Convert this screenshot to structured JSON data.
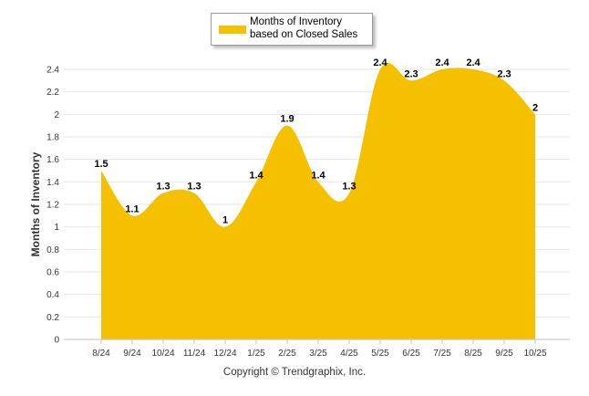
{
  "chart_data": {
    "type": "area",
    "title": "",
    "legend": {
      "label": "Months of Inventory based on Closed Sales",
      "position": "top-center"
    },
    "xlabel": "",
    "ylabel": "Months of Inventory",
    "categories": [
      "8/24",
      "9/24",
      "10/24",
      "11/24",
      "12/24",
      "1/25",
      "2/25",
      "3/25",
      "4/25",
      "5/25",
      "6/25",
      "7/25",
      "8/25",
      "9/25",
      "10/25"
    ],
    "values": [
      1.5,
      1.1,
      1.3,
      1.3,
      1,
      1.4,
      1.9,
      1.4,
      1.3,
      2.4,
      2.3,
      2.4,
      2.4,
      2.3,
      2
    ],
    "data_labels": [
      "1.5",
      "1.1",
      "1.3",
      "1.3",
      "1",
      "1.4",
      "1.9",
      "1.4",
      "1.3",
      "2.4",
      "2.3",
      "2.4",
      "2.4",
      "2.3",
      "2"
    ],
    "ylim": [
      0,
      2.4
    ],
    "yticks": [
      "0",
      "0.2",
      "0.4",
      "0.6",
      "0.8",
      "1",
      "1.2",
      "1.4",
      "1.6",
      "1.8",
      "2",
      "2.2",
      "2.4"
    ],
    "grid": true,
    "color": "#f5c000"
  },
  "footer": "Copyright © Trendgraphix, Inc."
}
